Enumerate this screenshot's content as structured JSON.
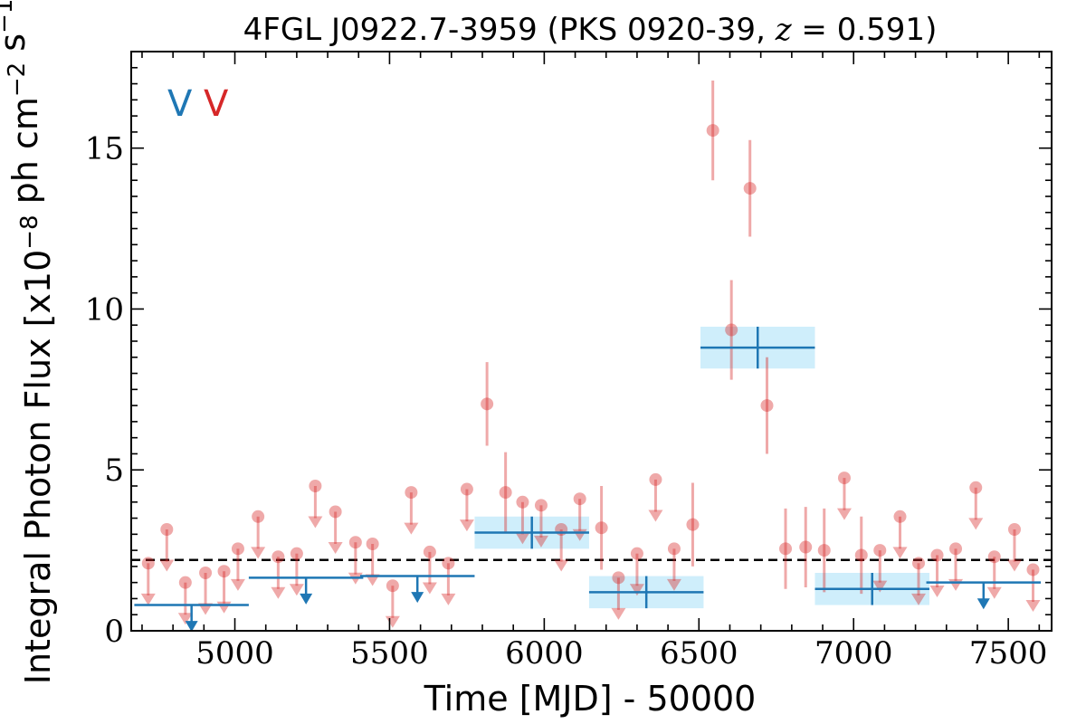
{
  "chart_data": {
    "type": "scatter",
    "title": "4FGL J0922.7-3959 (PKS 0920-39, z = 0.591)",
    "xlabel": "Time [MJD] - 50000",
    "ylabel": "Integral Photon Flux [x10^-8 ph cm^-2 s^-1]",
    "xlim": [
      4665,
      7640
    ],
    "ylim": [
      0,
      18
    ],
    "xticks": [
      5000,
      5500,
      6000,
      6500,
      7000,
      7500
    ],
    "yticks": [
      0,
      5,
      10,
      15
    ],
    "grid": false,
    "legend_marks": [
      {
        "label": "V",
        "color": "#1f77b4"
      },
      {
        "label": "V",
        "color": "#d62728"
      }
    ],
    "reference_line": {
      "y": 2.2,
      "style": "dashed",
      "color": "#000000"
    },
    "series": [
      {
        "color": "#1f77b4",
        "detections": [
          {
            "x": 5960,
            "y": 3.05,
            "xerr": 185,
            "yerr": 0.5
          },
          {
            "x": 6330,
            "y": 1.2,
            "xerr": 185,
            "yerr": 0.5
          },
          {
            "x": 6690,
            "y": 8.8,
            "xerr": 185,
            "yerr": 0.65
          },
          {
            "x": 7060,
            "y": 1.3,
            "xerr": 185,
            "yerr": 0.5
          }
        ],
        "upper_limits": [
          {
            "x": 4860,
            "y": 0.8,
            "xerr": 185
          },
          {
            "x": 5230,
            "y": 1.65,
            "xerr": 185
          },
          {
            "x": 5590,
            "y": 1.7,
            "xerr": 185
          },
          {
            "x": 7420,
            "y": 1.5,
            "xerr": 185
          }
        ]
      },
      {
        "color": "#d62728",
        "detections": [
          {
            "x": 5815,
            "y": 7.05,
            "yerr": 1.3
          },
          {
            "x": 5875,
            "y": 4.3,
            "yerr": 1.25
          },
          {
            "x": 6185,
            "y": 3.2,
            "yerr": 1.3
          },
          {
            "x": 6480,
            "y": 3.3,
            "yerr": 1.3
          },
          {
            "x": 6545,
            "y": 15.55,
            "yerr": 1.55
          },
          {
            "x": 6605,
            "y": 9.35,
            "yerr": 1.55
          },
          {
            "x": 6665,
            "y": 13.75,
            "yerr": 1.5
          },
          {
            "x": 6720,
            "y": 7.0,
            "yerr": 1.5
          },
          {
            "x": 6780,
            "y": 2.55,
            "yerr": 1.25
          },
          {
            "x": 6845,
            "y": 2.6,
            "yerr": 1.25
          },
          {
            "x": 6905,
            "y": 2.5,
            "yerr": 1.3
          },
          {
            "x": 7025,
            "y": 2.35,
            "yerr": 1.2
          }
        ],
        "upper_limits": [
          {
            "x": 4720,
            "y": 2.1
          },
          {
            "x": 4780,
            "y": 3.15
          },
          {
            "x": 4840,
            "y": 1.5
          },
          {
            "x": 4905,
            "y": 1.8
          },
          {
            "x": 4965,
            "y": 1.85
          },
          {
            "x": 5010,
            "y": 2.55
          },
          {
            "x": 5075,
            "y": 3.55
          },
          {
            "x": 5140,
            "y": 2.3
          },
          {
            "x": 5200,
            "y": 2.4
          },
          {
            "x": 5260,
            "y": 4.5
          },
          {
            "x": 5325,
            "y": 3.7
          },
          {
            "x": 5390,
            "y": 2.75
          },
          {
            "x": 5445,
            "y": 2.7
          },
          {
            "x": 5510,
            "y": 1.4
          },
          {
            "x": 5570,
            "y": 4.3
          },
          {
            "x": 5630,
            "y": 2.45
          },
          {
            "x": 5690,
            "y": 2.1
          },
          {
            "x": 5750,
            "y": 4.4
          },
          {
            "x": 5930,
            "y": 4.0
          },
          {
            "x": 5990,
            "y": 3.9
          },
          {
            "x": 6055,
            "y": 3.15
          },
          {
            "x": 6115,
            "y": 4.1
          },
          {
            "x": 6240,
            "y": 1.65
          },
          {
            "x": 6300,
            "y": 2.4
          },
          {
            "x": 6360,
            "y": 4.7
          },
          {
            "x": 6420,
            "y": 2.55
          },
          {
            "x": 6970,
            "y": 4.75
          },
          {
            "x": 7085,
            "y": 2.5
          },
          {
            "x": 7150,
            "y": 3.55
          },
          {
            "x": 7210,
            "y": 2.1
          },
          {
            "x": 7270,
            "y": 2.35
          },
          {
            "x": 7330,
            "y": 2.55
          },
          {
            "x": 7395,
            "y": 4.45
          },
          {
            "x": 7455,
            "y": 2.3
          },
          {
            "x": 7520,
            "y": 3.15
          },
          {
            "x": 7580,
            "y": 1.9
          }
        ]
      }
    ]
  }
}
